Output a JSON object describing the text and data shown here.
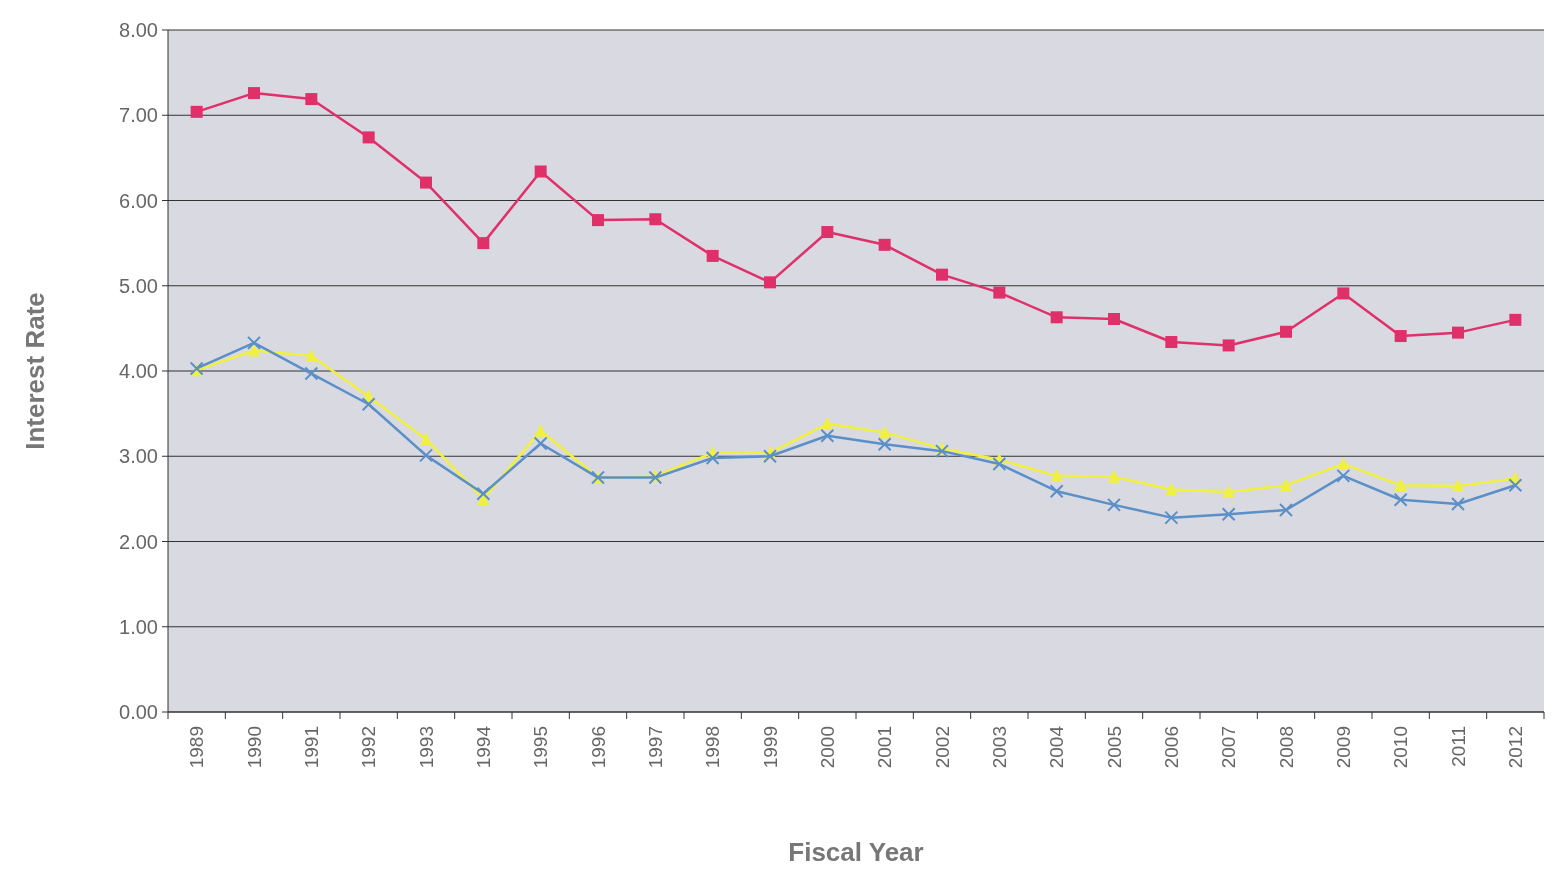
{
  "chart_data": {
    "type": "line",
    "xlabel": "Fiscal Year",
    "ylabel": "Interest Rate",
    "categories": [
      "1989",
      "1990",
      "1991",
      "1992",
      "1993",
      "1994",
      "1995",
      "1996",
      "1997",
      "1998",
      "1999",
      "2000",
      "2001",
      "2002",
      "2003",
      "2004",
      "2005",
      "2006",
      "2007",
      "2008",
      "2009",
      "2010",
      "2011",
      "2012"
    ],
    "series": [
      {
        "color": "#e0306a",
        "marker": "square",
        "values": [
          7.04,
          7.26,
          7.19,
          6.74,
          6.21,
          5.5,
          6.34,
          5.77,
          5.78,
          5.35,
          5.04,
          5.63,
          5.48,
          5.13,
          4.92,
          4.63,
          4.61,
          4.34,
          4.3,
          4.46,
          4.91,
          4.41,
          4.45,
          4.6
        ]
      },
      {
        "color": "#f0f040",
        "marker": "triangle",
        "values": [
          4.01,
          4.24,
          4.18,
          3.7,
          3.2,
          2.5,
          3.3,
          2.75,
          2.77,
          3.04,
          3.04,
          3.38,
          3.28,
          3.09,
          2.96,
          2.77,
          2.76,
          2.61,
          2.58,
          2.66,
          2.91,
          2.66,
          2.65,
          2.74
        ]
      },
      {
        "color": "#5b8fc8",
        "marker": "cross",
        "values": [
          4.03,
          4.33,
          3.97,
          3.61,
          3.01,
          2.56,
          3.15,
          2.75,
          2.75,
          2.98,
          3.0,
          3.24,
          3.14,
          3.06,
          2.91,
          2.59,
          2.43,
          2.28,
          2.32,
          2.37,
          2.77,
          2.49,
          2.44,
          2.66
        ]
      }
    ],
    "ylim": [
      0,
      8
    ],
    "yticks": [
      {
        "value": 0,
        "label": "0.00"
      },
      {
        "value": 1,
        "label": "1.00"
      },
      {
        "value": 2,
        "label": "2.00"
      },
      {
        "value": 3,
        "label": "3.00"
      },
      {
        "value": 4,
        "label": "4.00"
      },
      {
        "value": 5,
        "label": "5.00"
      },
      {
        "value": 6,
        "label": "6.00"
      },
      {
        "value": 7,
        "label": "7.00"
      },
      {
        "value": 8,
        "label": "8.00"
      }
    ],
    "grid": "y"
  }
}
